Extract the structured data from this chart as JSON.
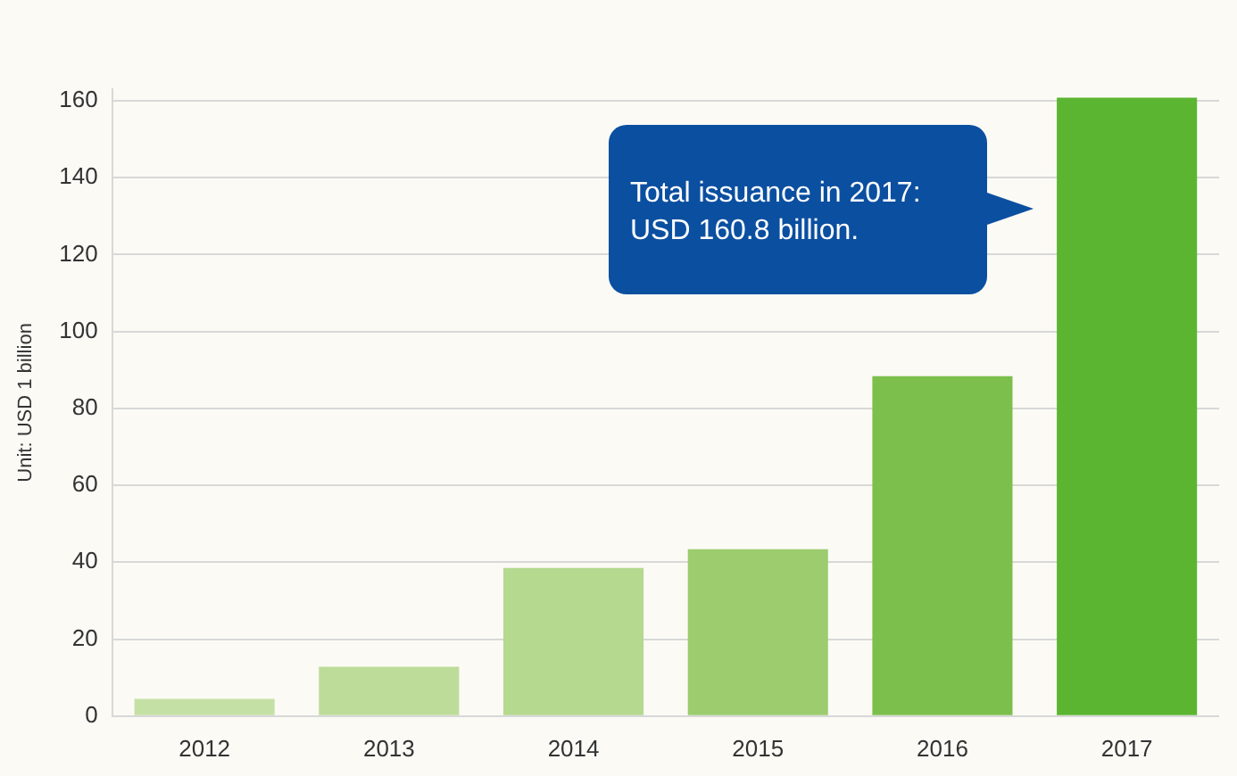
{
  "chart_data": {
    "type": "bar",
    "ylabel": "Unit: USD 1 billion",
    "categories": [
      "2012",
      "2013",
      "2014",
      "2015",
      "2016",
      "2017"
    ],
    "values": [
      4.5,
      12.8,
      38.5,
      43.4,
      88.4,
      160.8
    ],
    "colors": [
      "#c5e0a5",
      "#bddc9a",
      "#b5d98f",
      "#9ccc6e",
      "#7dbf4c",
      "#5cb531"
    ],
    "ylim": [
      0,
      163
    ],
    "yticks": [
      0,
      20,
      40,
      60,
      80,
      100,
      120,
      140,
      160
    ],
    "grid": "y",
    "legend": false,
    "annotations": [
      "Total issuance in 2017:\nUSD 160.8 billion."
    ]
  }
}
